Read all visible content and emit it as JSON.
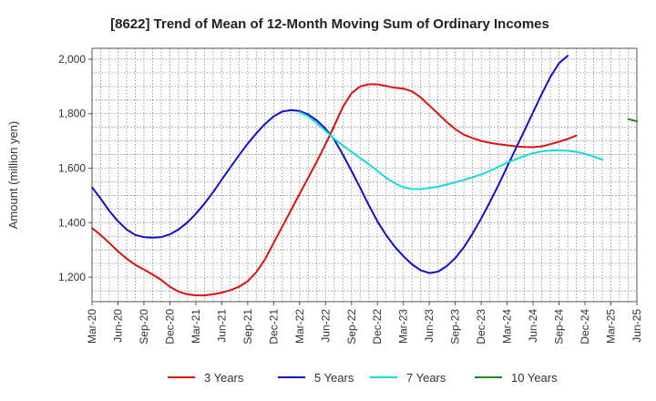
{
  "chart_data": {
    "type": "line",
    "title": "[8622]  Trend of Mean of 12-Month Moving Sum of Ordinary Incomes",
    "xlabel": "",
    "ylabel": "Amount (million yen)",
    "ylim": [
      1110,
      2040
    ],
    "yticks": [
      1200,
      1400,
      1600,
      1800,
      2000
    ],
    "ytick_labels": [
      "1,200",
      "1,400",
      "1,600",
      "1,800",
      "2,000"
    ],
    "xlim": [
      0,
      63
    ],
    "xtick_labels": [
      "Mar-20",
      "Jun-20",
      "Sep-20",
      "Dec-20",
      "Mar-21",
      "Jun-21",
      "Sep-21",
      "Dec-21",
      "Mar-22",
      "Jun-22",
      "Sep-22",
      "Dec-22",
      "Mar-23",
      "Jun-23",
      "Sep-23",
      "Dec-23",
      "Mar-24",
      "Jun-24",
      "Sep-24",
      "Dec-24",
      "Mar-25",
      "Jun-25"
    ],
    "grid": true,
    "legend_position": "bottom",
    "series": [
      {
        "name": "3 Years",
        "color": "#dd1111",
        "start_index": 0,
        "values": [
          1380,
          1355,
          1325,
          1295,
          1268,
          1245,
          1228,
          1210,
          1190,
          1165,
          1147,
          1137,
          1133,
          1133,
          1137,
          1143,
          1152,
          1165,
          1185,
          1218,
          1265,
          1325,
          1385,
          1445,
          1505,
          1565,
          1625,
          1688,
          1755,
          1825,
          1875,
          1900,
          1908,
          1908,
          1902,
          1895,
          1892,
          1882,
          1860,
          1830,
          1800,
          1770,
          1743,
          1723,
          1710,
          1700,
          1693,
          1688,
          1684,
          1680,
          1678,
          1677,
          1680,
          1688,
          1697,
          1707,
          1720
        ]
      },
      {
        "name": "5 Years",
        "color": "#1111cc",
        "start_index": 0,
        "values": [
          1530,
          1488,
          1443,
          1405,
          1375,
          1355,
          1347,
          1345,
          1347,
          1357,
          1375,
          1400,
          1432,
          1470,
          1512,
          1558,
          1603,
          1648,
          1690,
          1728,
          1762,
          1790,
          1808,
          1813,
          1810,
          1797,
          1775,
          1745,
          1705,
          1650,
          1590,
          1528,
          1465,
          1405,
          1355,
          1312,
          1277,
          1247,
          1225,
          1215,
          1220,
          1240,
          1270,
          1310,
          1360,
          1415,
          1475,
          1538,
          1605,
          1672,
          1738,
          1805,
          1872,
          1935,
          1985,
          2013
        ]
      },
      {
        "name": "7 Years",
        "color": "#11dddd",
        "start_index": 24,
        "values": [
          1805,
          1790,
          1765,
          1737,
          1708,
          1683,
          1660,
          1637,
          1615,
          1590,
          1565,
          1545,
          1530,
          1523,
          1523,
          1527,
          1532,
          1540,
          1548,
          1557,
          1567,
          1577,
          1590,
          1605,
          1620,
          1633,
          1645,
          1655,
          1662,
          1665,
          1665,
          1664,
          1660,
          1653,
          1643,
          1632
        ]
      },
      {
        "name": "10 Years",
        "color": "#228822",
        "start_index": 62,
        "values": [
          1780,
          1772
        ]
      }
    ]
  }
}
